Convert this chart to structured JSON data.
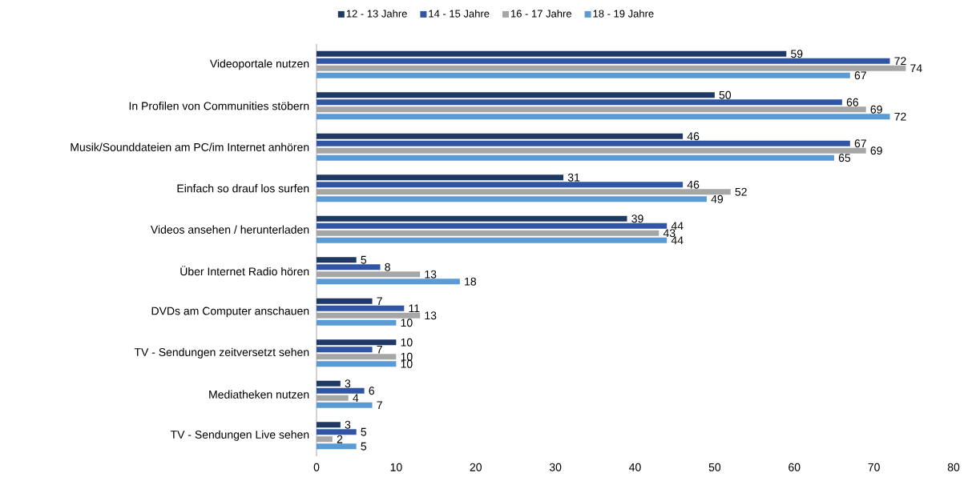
{
  "chart_data": {
    "type": "bar",
    "orientation": "horizontal",
    "categories": [
      "Videoportale nutzen",
      "In Profilen von Communities stöbern",
      "Musik/Sounddateien am PC/im Internet anhören",
      "Einfach so drauf los surfen",
      "Videos ansehen / herunterladen",
      "Über Internet Radio hören",
      "DVDs am Computer anschauen",
      "TV - Sendungen zeitversetzt sehen",
      "Mediatheken nutzen",
      "TV - Sendungen Live sehen"
    ],
    "series": [
      {
        "name": "12 - 13 Jahre",
        "color": "#1f3864",
        "values": [
          59,
          50,
          46,
          31,
          39,
          5,
          7,
          10,
          3,
          3
        ]
      },
      {
        "name": "14 - 15 Jahre",
        "color": "#2f55a4",
        "values": [
          72,
          66,
          67,
          46,
          44,
          8,
          11,
          7,
          6,
          5
        ]
      },
      {
        "name": "16 - 17 Jahre",
        "color": "#a6a6a6",
        "values": [
          74,
          69,
          69,
          52,
          43,
          13,
          13,
          10,
          4,
          2
        ]
      },
      {
        "name": "18 - 19 Jahre",
        "color": "#5b9bd5",
        "values": [
          67,
          72,
          65,
          49,
          44,
          18,
          10,
          10,
          7,
          5
        ]
      }
    ],
    "xlim": [
      0,
      80
    ],
    "xticks": [
      0,
      10,
      20,
      30,
      40,
      50,
      60,
      70,
      80
    ],
    "data_labels": true,
    "legend": "top",
    "grid": false
  }
}
